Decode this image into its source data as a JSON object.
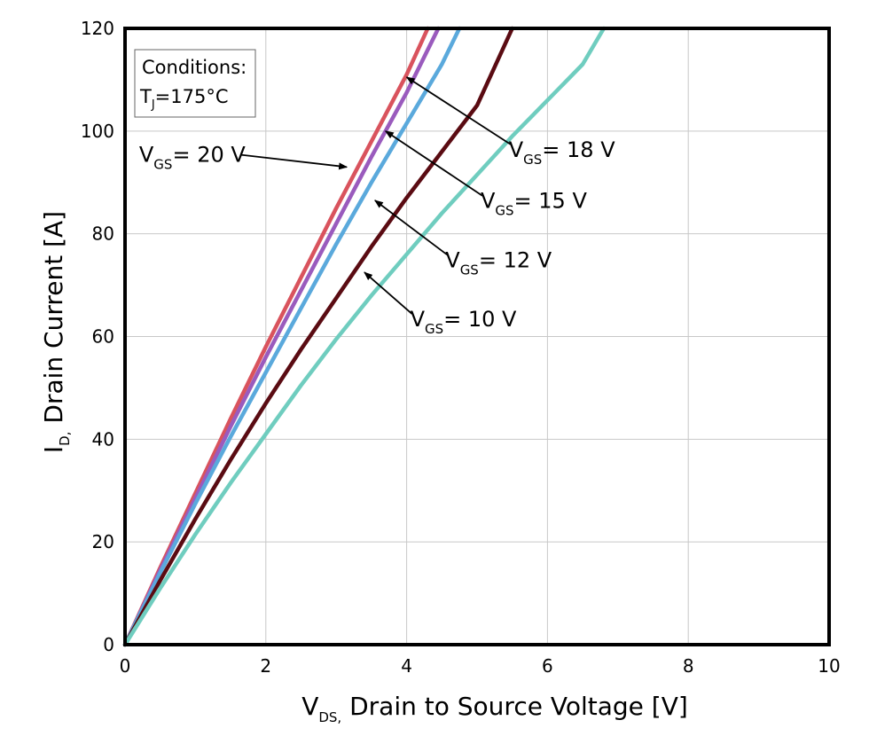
{
  "chart_data": {
    "type": "line",
    "x_axis": {
      "label_main": "V",
      "label_sub": "DS,",
      "label_rest": " Drain to Source Voltage [V]",
      "lim": [
        0,
        10
      ],
      "ticks": [
        0,
        2,
        4,
        6,
        8,
        10
      ]
    },
    "y_axis": {
      "label_main": "I",
      "label_sub": "D,",
      "label_rest": " Drain Current [A]",
      "lim": [
        0,
        120
      ],
      "ticks": [
        0,
        20,
        40,
        60,
        80,
        100,
        120
      ]
    },
    "grid": true,
    "conditions": {
      "title": "Conditions:",
      "line2_main": "T",
      "line2_sub": "J",
      "line2_rest": "=175°C"
    },
    "series": [
      {
        "name": "VGS = 20 V",
        "label_main": "V",
        "label_sub": "GS",
        "label_rest": "= 20 V",
        "color": "#d9535d",
        "points": [
          [
            0,
            0
          ],
          [
            0.5,
            15
          ],
          [
            1,
            29.5
          ],
          [
            1.5,
            44
          ],
          [
            2,
            58
          ],
          [
            2.5,
            71.5
          ],
          [
            3,
            85
          ],
          [
            3.5,
            98
          ],
          [
            4,
            111
          ],
          [
            4.3,
            120
          ]
        ]
      },
      {
        "name": "VGS = 18 V",
        "label_main": "V",
        "label_sub": "GS",
        "label_rest": "= 18 V",
        "color": "#9a5bbd",
        "points": [
          [
            0,
            0
          ],
          [
            0.5,
            14.5
          ],
          [
            1,
            28.5
          ],
          [
            1.5,
            42.5
          ],
          [
            2,
            56
          ],
          [
            2.5,
            69
          ],
          [
            3,
            82
          ],
          [
            3.5,
            95
          ],
          [
            4,
            107.5
          ],
          [
            4.45,
            120
          ]
        ]
      },
      {
        "name": "VGS = 15 V",
        "label_main": "V",
        "label_sub": "GS",
        "label_rest": "= 15 V",
        "color": "#5aa9dc",
        "points": [
          [
            0,
            0
          ],
          [
            0.5,
            14
          ],
          [
            1,
            27.5
          ],
          [
            1.5,
            40.5
          ],
          [
            2,
            53
          ],
          [
            2.5,
            65.5
          ],
          [
            3,
            78
          ],
          [
            3.5,
            90
          ],
          [
            4,
            101.5
          ],
          [
            4.5,
            113
          ],
          [
            4.75,
            120
          ]
        ]
      },
      {
        "name": "VGS = 12 V",
        "label_main": "V",
        "label_sub": "GS",
        "label_rest": "= 12 V",
        "color": "#5a0b12",
        "points": [
          [
            0,
            0
          ],
          [
            0.5,
            12.5
          ],
          [
            1,
            24.5
          ],
          [
            1.5,
            36
          ],
          [
            2,
            47
          ],
          [
            2.5,
            57.5
          ],
          [
            3,
            67.5
          ],
          [
            3.5,
            77.5
          ],
          [
            4,
            87
          ],
          [
            4.5,
            96
          ],
          [
            5,
            105
          ],
          [
            5.5,
            120
          ]
        ]
      },
      {
        "name": "VGS = 10 V",
        "label_main": "V",
        "label_sub": "GS",
        "label_rest": "= 10 V",
        "color": "#6fcdbf",
        "points": [
          [
            0,
            0
          ],
          [
            0.5,
            11
          ],
          [
            1,
            21.5
          ],
          [
            1.5,
            31.5
          ],
          [
            2,
            41
          ],
          [
            2.5,
            50.5
          ],
          [
            3,
            59.5
          ],
          [
            3.5,
            68
          ],
          [
            4,
            76
          ],
          [
            4.5,
            84
          ],
          [
            5,
            91.5
          ],
          [
            5.5,
            99
          ],
          [
            6,
            106
          ],
          [
            6.5,
            113
          ],
          [
            6.8,
            120
          ]
        ]
      }
    ],
    "annotations": [
      {
        "series": "VGS = 20 V",
        "text_xy": [
          0.2,
          94
        ],
        "arrow_xy": [
          3.15,
          93
        ]
      },
      {
        "series": "VGS = 18 V",
        "text_xy": [
          5.45,
          95
        ],
        "arrow_xy": [
          4.0,
          110.5
        ]
      },
      {
        "series": "VGS = 15 V",
        "text_xy": [
          5.05,
          85
        ],
        "arrow_xy": [
          3.7,
          100
        ]
      },
      {
        "series": "VGS = 12 V",
        "text_xy": [
          4.55,
          73.5
        ],
        "arrow_xy": [
          3.55,
          86.5
        ]
      },
      {
        "series": "VGS = 10 V",
        "text_xy": [
          4.05,
          62
        ],
        "arrow_xy": [
          3.4,
          72.5
        ]
      }
    ]
  }
}
